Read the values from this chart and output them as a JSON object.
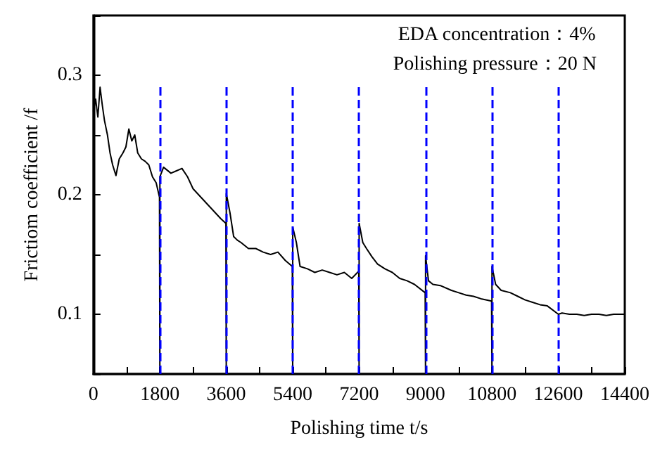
{
  "chart_data": {
    "type": "line",
    "xlabel": "Polishing time t/s",
    "ylabel": "Frictiom coefficient /f",
    "annotations": [
      "EDA concentration：4%",
      "Polishing pressure：20 N"
    ],
    "x": [
      0,
      60,
      120,
      180,
      240,
      300,
      380,
      450,
      520,
      610,
      700,
      800,
      880,
      960,
      1040,
      1120,
      1200,
      1300,
      1400,
      1500,
      1600,
      1700,
      1790,
      1800,
      1801,
      1900,
      2100,
      2250,
      2400,
      2550,
      2700,
      2850,
      3000,
      3150,
      3300,
      3450,
      3590,
      3600,
      3601,
      3700,
      3800,
      3900,
      4000,
      4200,
      4400,
      4600,
      4800,
      5000,
      5200,
      5390,
      5400,
      5401,
      5500,
      5600,
      5800,
      6000,
      6200,
      6400,
      6600,
      6800,
      7000,
      7190,
      7200,
      7201,
      7300,
      7400,
      7550,
      7700,
      7900,
      8100,
      8300,
      8500,
      8700,
      8990,
      9000,
      9001,
      9080,
      9200,
      9400,
      9700,
      9900,
      10100,
      10300,
      10500,
      10790,
      10800,
      10801,
      10900,
      11050,
      11300,
      11500,
      11700,
      11900,
      12100,
      12300,
      12600,
      12700,
      12900,
      13100,
      13300,
      13500,
      13700,
      13900,
      14100,
      14400
    ],
    "series": [
      {
        "color": "#000000",
        "values": [
          0.27,
          0.28,
          0.265,
          0.29,
          0.275,
          0.262,
          0.25,
          0.235,
          0.225,
          0.216,
          0.23,
          0.235,
          0.24,
          0.255,
          0.245,
          0.25,
          0.235,
          0.23,
          0.228,
          0.225,
          0.215,
          0.21,
          0.198,
          0.05,
          0.215,
          0.223,
          0.218,
          0.22,
          0.222,
          0.215,
          0.205,
          0.2,
          0.195,
          0.19,
          0.185,
          0.18,
          0.176,
          0.05,
          0.201,
          0.185,
          0.165,
          0.162,
          0.16,
          0.155,
          0.155,
          0.152,
          0.15,
          0.152,
          0.145,
          0.14,
          0.05,
          0.173,
          0.16,
          0.14,
          0.138,
          0.135,
          0.137,
          0.135,
          0.133,
          0.135,
          0.13,
          0.136,
          0.05,
          0.176,
          0.16,
          0.155,
          0.148,
          0.142,
          0.138,
          0.135,
          0.13,
          0.128,
          0.125,
          0.118,
          0.05,
          0.149,
          0.128,
          0.125,
          0.124,
          0.12,
          0.118,
          0.116,
          0.115,
          0.113,
          0.111,
          0.05,
          0.14,
          0.125,
          0.12,
          0.118,
          0.115,
          0.112,
          0.11,
          0.108,
          0.107,
          0.1,
          0.101,
          0.1,
          0.1,
          0.099,
          0.1,
          0.1,
          0.099,
          0.1,
          0.1
        ]
      }
    ],
    "xlim": [
      0,
      14400
    ],
    "xticks": [
      0,
      {
        "value": 900,
        "label": null
      },
      1800,
      {
        "value": 2700,
        "label": null
      },
      3600,
      {
        "value": 4500,
        "label": null
      },
      5400,
      {
        "value": 6300,
        "label": null
      },
      7200,
      {
        "value": 8100,
        "label": null
      },
      9000,
      {
        "value": 9900,
        "label": null
      },
      10800,
      {
        "value": 11700,
        "label": null
      },
      12600,
      {
        "value": 13500,
        "label": null
      },
      14400
    ],
    "ylim": [
      0.05,
      0.35
    ],
    "yticks": [
      {
        "value": 0.05,
        "label": null
      },
      0.1,
      {
        "value": 0.15,
        "label": null
      },
      0.2,
      {
        "value": 0.25,
        "label": null
      },
      0.3,
      {
        "value": 0.35,
        "label": null
      }
    ],
    "ref_lines": [
      {
        "axis": "x",
        "value": 1800,
        "color": "#0000ff",
        "line_style": "dashed"
      },
      {
        "axis": "x",
        "value": 3600,
        "color": "#0000ff",
        "line_style": "dashed"
      },
      {
        "axis": "x",
        "value": 5400,
        "color": "#0000ff",
        "line_style": "dashed"
      },
      {
        "axis": "x",
        "value": 7200,
        "color": "#0000ff",
        "line_style": "dashed"
      },
      {
        "axis": "x",
        "value": 9000,
        "color": "#0000ff",
        "line_style": "dashed"
      },
      {
        "axis": "x",
        "value": 10800,
        "color": "#0000ff",
        "line_style": "dashed"
      },
      {
        "axis": "x",
        "value": 12600,
        "color": "#0000ff",
        "line_style": "dashed"
      }
    ],
    "grid": false,
    "marker": "none",
    "line_style": "solid"
  }
}
